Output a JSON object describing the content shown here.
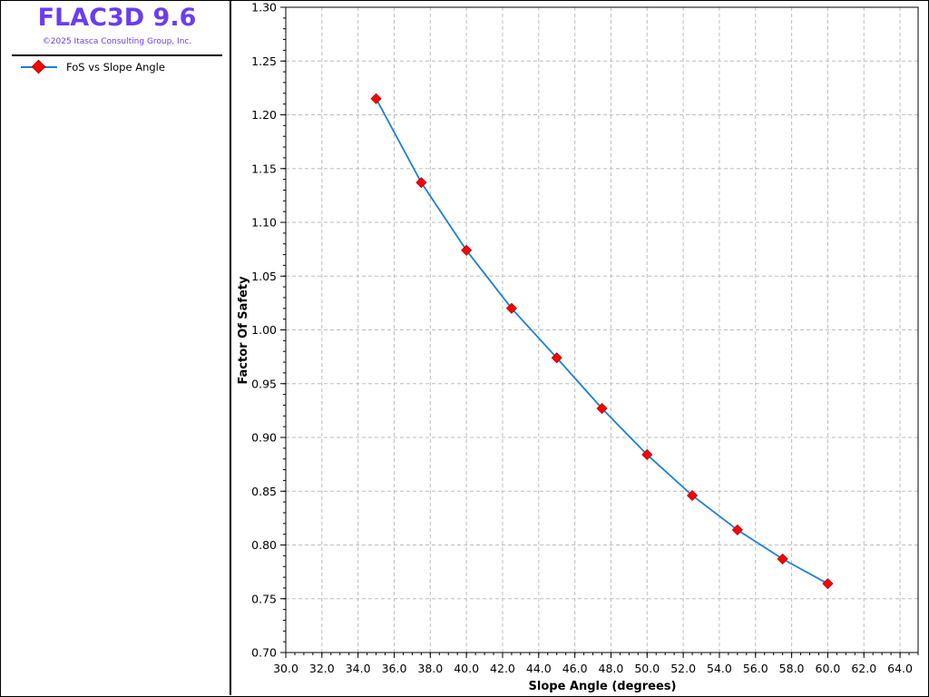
{
  "app": {
    "title": "FLAC3D 9.6",
    "copyright": "©2025 Itasca Consulting Group, Inc."
  },
  "colors": {
    "title": "#6a3df0",
    "series_line": "#1a7fd8",
    "marker": "#ff0000",
    "grid": "#bdbdbd"
  },
  "chart_data": {
    "type": "line",
    "title": "",
    "xlabel": "Slope Angle (degrees)",
    "ylabel": "Factor Of Safety",
    "xlim": [
      30.0,
      65.0
    ],
    "ylim": [
      0.7,
      1.3
    ],
    "x_ticks": [
      "30.0",
      "32.0",
      "34.0",
      "36.0",
      "38.0",
      "40.0",
      "42.0",
      "44.0",
      "46.0",
      "48.0",
      "50.0",
      "52.0",
      "54.0",
      "56.0",
      "58.0",
      "60.0",
      "62.0",
      "64.0"
    ],
    "y_ticks": [
      "0.70",
      "0.75",
      "0.80",
      "0.85",
      "0.90",
      "0.95",
      "1.00",
      "1.05",
      "1.10",
      "1.15",
      "1.20",
      "1.25",
      "1.30"
    ],
    "grid": true,
    "legend_position": "left-panel",
    "series": [
      {
        "name": "FoS vs Slope Angle",
        "marker": "diamond",
        "x": [
          35.0,
          37.5,
          40.0,
          42.5,
          45.0,
          47.5,
          50.0,
          52.5,
          55.0,
          57.5,
          60.0
        ],
        "y": [
          1.215,
          1.137,
          1.074,
          1.02,
          0.974,
          0.927,
          0.884,
          0.846,
          0.814,
          0.787,
          0.764
        ]
      }
    ]
  }
}
